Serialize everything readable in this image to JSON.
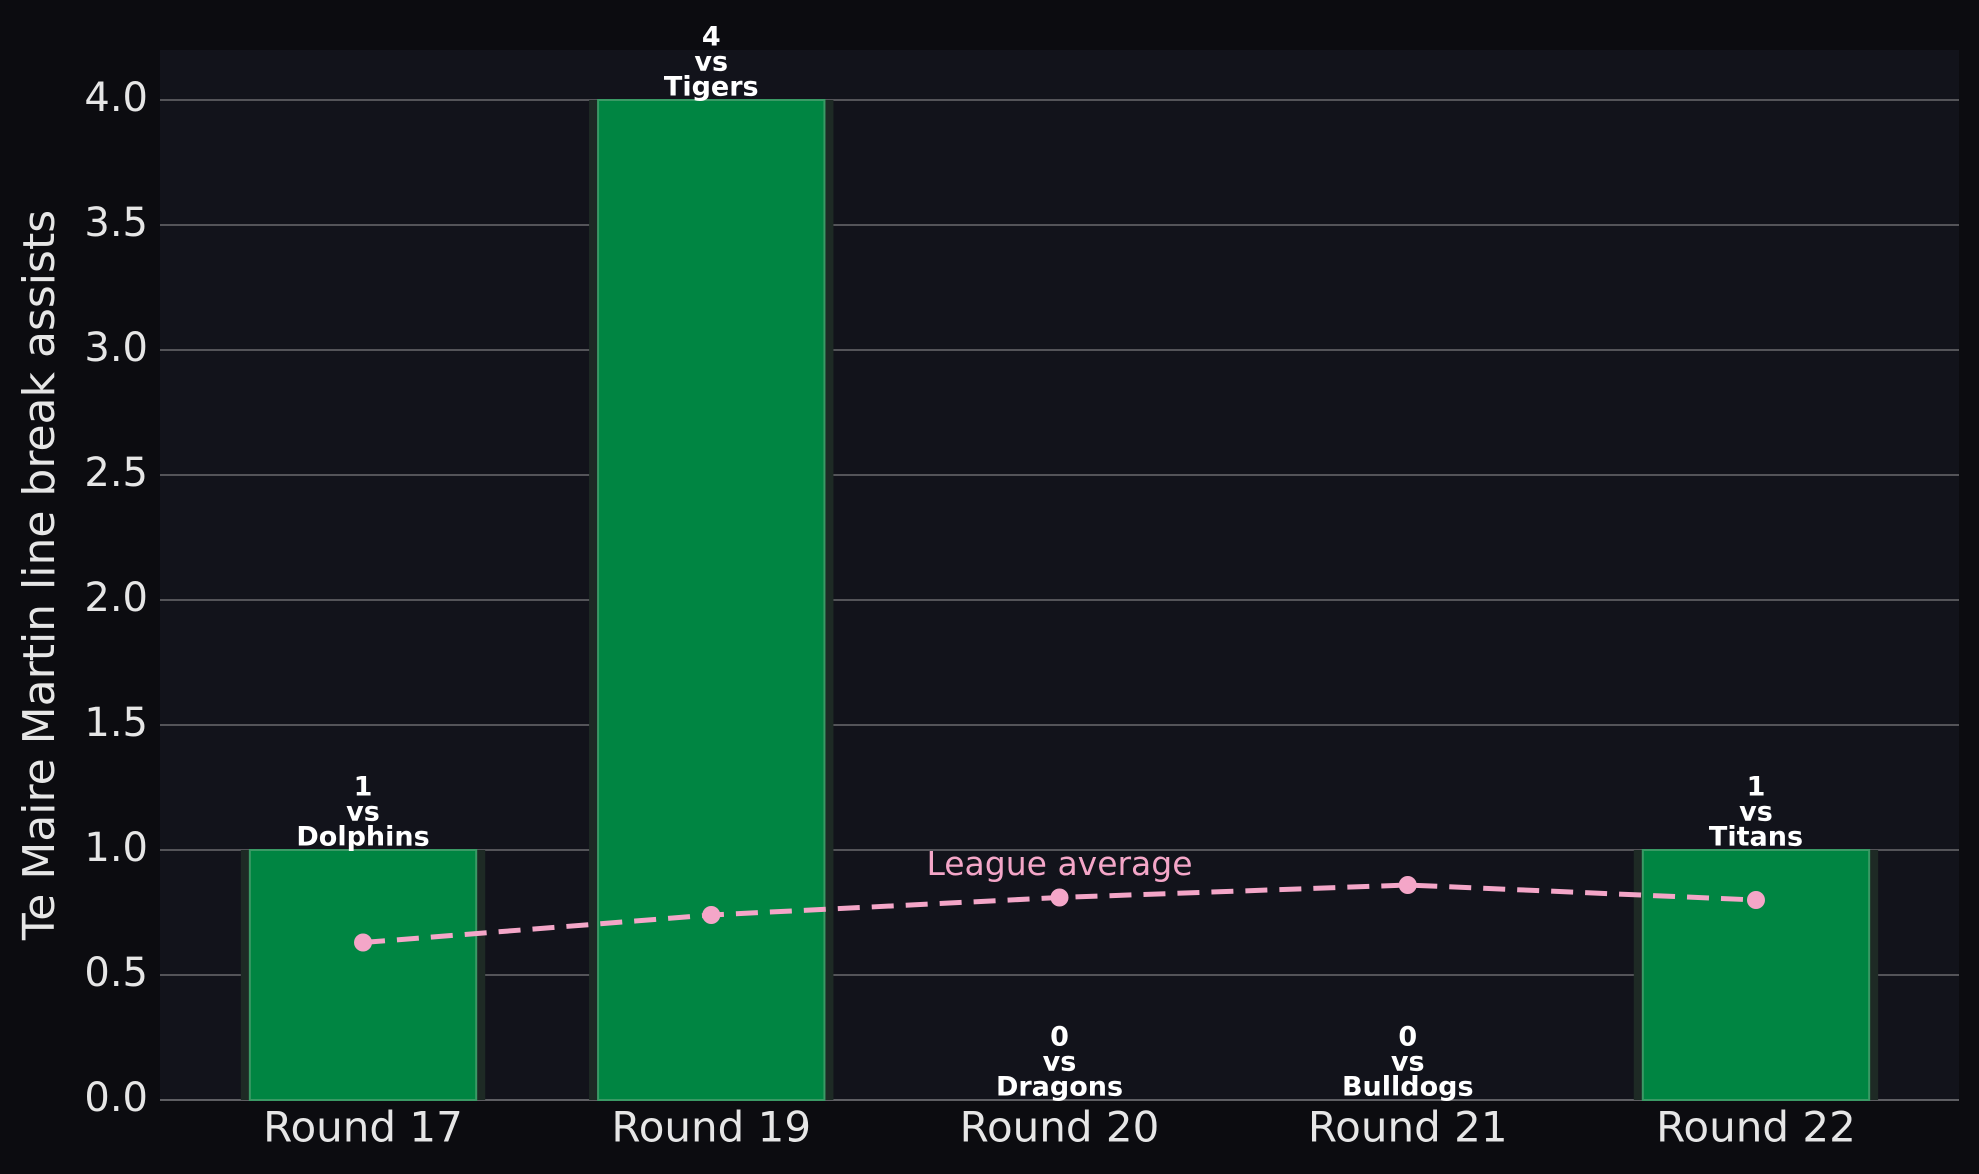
{
  "chart_data": {
    "type": "bar",
    "categories": [
      "Round 17",
      "Round 19",
      "Round 20",
      "Round 21",
      "Round 22"
    ],
    "values": [
      1,
      4,
      0,
      0,
      1
    ],
    "color": "#008542",
    "opponents": [
      "Dolphins",
      "Tigers",
      "Dragons",
      "Bulldogs",
      "Titans"
    ],
    "vs_label": "vs",
    "y_label": "Te Maire Martin line break assists",
    "line": {
      "name": "League average",
      "color": "#f4a6c8",
      "values": [
        0.63,
        0.74,
        0.81,
        0.86,
        0.8
      ]
    },
    "ylim": [
      0,
      4.2
    ],
    "yticks": [
      {
        "value": 0,
        "label": "0.0"
      },
      0.5,
      {
        "value": 1,
        "label": "1.0"
      },
      1.5,
      {
        "value": 2,
        "label": "2.0"
      },
      2.5,
      {
        "value": 3,
        "label": "3.0"
      },
      3.5,
      {
        "value": 4,
        "label": "4.0"
      }
    ],
    "grid": true
  }
}
